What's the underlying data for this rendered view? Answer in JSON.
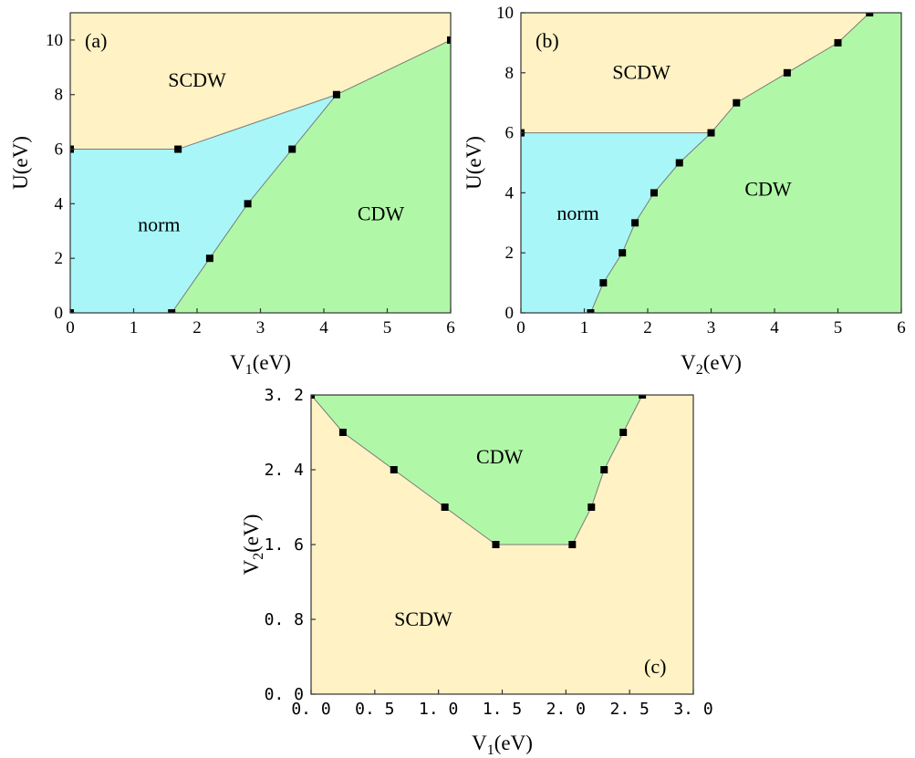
{
  "colors": {
    "scdw": "#FFF2C4",
    "norm": "#A8F6F8",
    "cdw": "#B0F8A8",
    "marker": "#000000",
    "boundary": "#7a7a7a"
  },
  "chart_data": [
    {
      "id": "a",
      "type": "scatter",
      "panel_label": "(a)",
      "xlabel": {
        "main": "V",
        "sub": "1",
        "rest": "(eV)"
      },
      "ylabel": {
        "main": "U(eV)",
        "sub": "",
        "rest": ""
      },
      "xlim": [
        0,
        6
      ],
      "ylim": [
        0,
        11
      ],
      "xticks": [
        "0",
        "1",
        "2",
        "3",
        "4",
        "5",
        "6"
      ],
      "yticks": [
        "0",
        "2",
        "4",
        "6",
        "8",
        "10"
      ],
      "regions": [
        {
          "name": "SCDW",
          "color": "scdw",
          "polygon": [
            [
              0,
              6
            ],
            [
              1.7,
              6
            ],
            [
              4.2,
              8
            ],
            [
              6,
              10
            ],
            [
              6,
              11
            ],
            [
              0,
              11
            ]
          ]
        },
        {
          "name": "norm",
          "color": "norm",
          "polygon": [
            [
              0,
              0
            ],
            [
              1.6,
              0
            ],
            [
              2.2,
              2
            ],
            [
              2.8,
              4
            ],
            [
              3.5,
              6
            ],
            [
              4.2,
              8
            ],
            [
              1.7,
              6
            ],
            [
              0,
              6
            ]
          ]
        },
        {
          "name": "CDW",
          "color": "cdw",
          "polygon": [
            [
              1.6,
              0
            ],
            [
              6,
              0
            ],
            [
              6,
              10
            ],
            [
              4.2,
              8
            ],
            [
              3.5,
              6
            ],
            [
              2.8,
              4
            ],
            [
              2.2,
              2
            ]
          ]
        }
      ],
      "region_labels": [
        {
          "text": "SCDW",
          "x": 2.0,
          "y": 8.3
        },
        {
          "text": "norm",
          "x": 1.4,
          "y": 3.0
        },
        {
          "text": "CDW",
          "x": 4.9,
          "y": 3.4
        }
      ],
      "series": [
        {
          "x": [
            0,
            1.7,
            4.2,
            6
          ],
          "y": [
            6,
            6,
            8,
            10
          ]
        },
        {
          "x": [
            1.6,
            2.2,
            2.8,
            3.5,
            4.2
          ],
          "y": [
            0,
            2,
            4,
            6,
            8
          ]
        }
      ],
      "points": [
        [
          0,
          6
        ],
        [
          1.7,
          6
        ],
        [
          4.2,
          8
        ],
        [
          6,
          10
        ],
        [
          1.6,
          0
        ],
        [
          2.2,
          2
        ],
        [
          2.8,
          4
        ],
        [
          3.5,
          6
        ],
        [
          0,
          0
        ]
      ]
    },
    {
      "id": "b",
      "type": "scatter",
      "panel_label": "(b)",
      "xlabel": {
        "main": "V",
        "sub": "2",
        "rest": "(eV)"
      },
      "ylabel": {
        "main": "U(eV)",
        "sub": "",
        "rest": ""
      },
      "xlim": [
        0,
        6
      ],
      "ylim": [
        0,
        10
      ],
      "xticks": [
        "0",
        "1",
        "2",
        "3",
        "4",
        "5",
        "6"
      ],
      "yticks": [
        "0",
        "2",
        "4",
        "6",
        "8",
        "10"
      ],
      "regions": [
        {
          "name": "SCDW",
          "color": "scdw",
          "polygon": [
            [
              0,
              6
            ],
            [
              3,
              6
            ],
            [
              3.4,
              7
            ],
            [
              4.2,
              8
            ],
            [
              5,
              9
            ],
            [
              5.5,
              10
            ],
            [
              0,
              10
            ]
          ]
        },
        {
          "name": "norm",
          "color": "norm",
          "polygon": [
            [
              0,
              0
            ],
            [
              1.1,
              0
            ],
            [
              1.3,
              1
            ],
            [
              1.6,
              2
            ],
            [
              1.8,
              3
            ],
            [
              2.1,
              4
            ],
            [
              2.5,
              5
            ],
            [
              3,
              6
            ],
            [
              0,
              6
            ]
          ]
        },
        {
          "name": "CDW",
          "color": "cdw",
          "polygon": [
            [
              1.1,
              0
            ],
            [
              6,
              0
            ],
            [
              6,
              10
            ],
            [
              5.5,
              10
            ],
            [
              5,
              9
            ],
            [
              4.2,
              8
            ],
            [
              3.4,
              7
            ],
            [
              3,
              6
            ],
            [
              2.5,
              5
            ],
            [
              2.1,
              4
            ],
            [
              1.8,
              3
            ],
            [
              1.6,
              2
            ],
            [
              1.3,
              1
            ]
          ]
        }
      ],
      "region_labels": [
        {
          "text": "SCDW",
          "x": 1.9,
          "y": 7.8
        },
        {
          "text": "norm",
          "x": 0.9,
          "y": 3.1
        },
        {
          "text": "CDW",
          "x": 3.9,
          "y": 3.9
        }
      ],
      "series": [
        {
          "x": [
            0,
            3
          ],
          "y": [
            6,
            6
          ]
        },
        {
          "x": [
            1.1,
            1.3,
            1.6,
            1.8,
            2.1,
            2.5,
            3,
            3.4,
            4.2,
            5,
            5.5
          ],
          "y": [
            0,
            1,
            2,
            3,
            4,
            5,
            6,
            7,
            8,
            9,
            10
          ]
        }
      ],
      "points": [
        [
          0,
          6
        ],
        [
          1.1,
          0
        ],
        [
          1.3,
          1
        ],
        [
          1.6,
          2
        ],
        [
          1.8,
          3
        ],
        [
          2.1,
          4
        ],
        [
          2.5,
          5
        ],
        [
          3,
          6
        ],
        [
          3.4,
          7
        ],
        [
          4.2,
          8
        ],
        [
          5,
          9
        ],
        [
          5.5,
          10
        ]
      ]
    },
    {
      "id": "c",
      "type": "scatter",
      "panel_label": "(c)",
      "xlabel": {
        "main": "V",
        "sub": "1",
        "rest": "(eV)"
      },
      "ylabel": {
        "main": "V",
        "sub": "2",
        "rest": "(eV)"
      },
      "xlim": [
        0,
        3.0
      ],
      "ylim": [
        0,
        3.2
      ],
      "xticks": [
        "0. 0",
        "0. 5",
        "1. 0",
        "1. 5",
        "2. 0",
        "2. 5",
        "3. 0"
      ],
      "yticks": [
        "0. 0",
        "0. 8",
        "1. 6",
        "2. 4",
        "3. 2"
      ],
      "regions": [
        {
          "name": "SCDW",
          "color": "scdw",
          "polygon": [
            [
              0,
              0
            ],
            [
              3.0,
              0
            ],
            [
              3.0,
              3.2
            ],
            [
              2.6,
              3.2
            ],
            [
              2.45,
              2.8
            ],
            [
              2.3,
              2.4
            ],
            [
              2.2,
              2.0
            ],
            [
              2.05,
              1.6
            ],
            [
              1.45,
              1.6
            ],
            [
              1.05,
              2.0
            ],
            [
              0.65,
              2.4
            ],
            [
              0.25,
              2.8
            ],
            [
              0,
              3.2
            ]
          ]
        },
        {
          "name": "CDW",
          "color": "cdw",
          "polygon": [
            [
              0,
              3.2
            ],
            [
              0.25,
              2.8
            ],
            [
              0.65,
              2.4
            ],
            [
              1.05,
              2.0
            ],
            [
              1.45,
              1.6
            ],
            [
              2.05,
              1.6
            ],
            [
              2.2,
              2.0
            ],
            [
              2.3,
              2.4
            ],
            [
              2.45,
              2.8
            ],
            [
              2.6,
              3.2
            ]
          ]
        }
      ],
      "region_labels": [
        {
          "text": "SCDW",
          "x": 0.88,
          "y": 0.73
        },
        {
          "text": "CDW",
          "x": 1.48,
          "y": 2.47
        }
      ],
      "series": [
        {
          "x": [
            0,
            0.25,
            0.65,
            1.05,
            1.45,
            2.05,
            2.2,
            2.3,
            2.45,
            2.6
          ],
          "y": [
            3.2,
            2.8,
            2.4,
            2.0,
            1.6,
            1.6,
            2.0,
            2.4,
            2.8,
            3.2
          ]
        }
      ],
      "points": [
        [
          0,
          3.2
        ],
        [
          0.25,
          2.8
        ],
        [
          0.65,
          2.4
        ],
        [
          1.05,
          2.0
        ],
        [
          1.45,
          1.6
        ],
        [
          2.05,
          1.6
        ],
        [
          2.2,
          2.0
        ],
        [
          2.3,
          2.4
        ],
        [
          2.45,
          2.8
        ],
        [
          2.6,
          3.2
        ]
      ]
    }
  ]
}
